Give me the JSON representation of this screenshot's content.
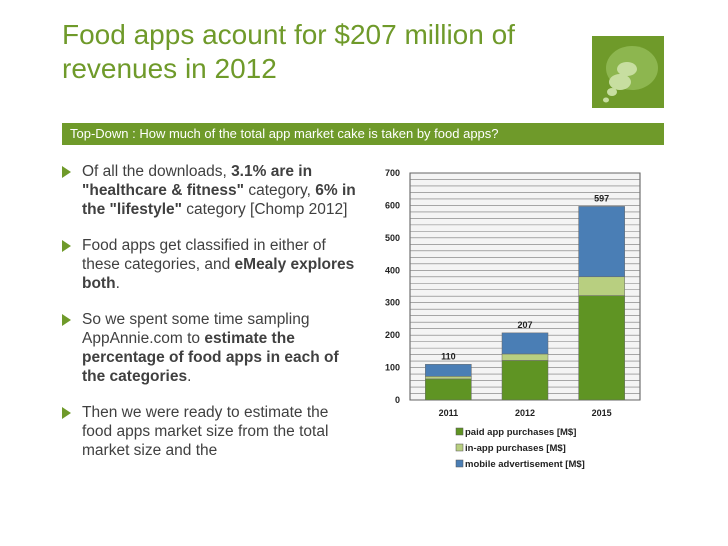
{
  "slide": {
    "title": "Food apps acount for $207 million of revenues in 2012",
    "subtitle": "Top-Down : How much of the total app market cake is taken by food apps?"
  },
  "bullets": [
    {
      "segments": [
        {
          "text": "Of all the downloads, ",
          "bold": false
        },
        {
          "text": "3.1% are in \"healthcare & fitness\"",
          "bold": true
        },
        {
          "text": " category, ",
          "bold": false
        },
        {
          "text": "6% in the \"lifestyle\"",
          "bold": true
        },
        {
          "text": " category [Chomp 2012]",
          "bold": false
        }
      ]
    },
    {
      "segments": [
        {
          "text": "Food apps get classified in either of these categories, and ",
          "bold": false
        },
        {
          "text": "eMealy explores both",
          "bold": true
        },
        {
          "text": ".",
          "bold": false
        }
      ]
    },
    {
      "segments": [
        {
          "text": "So we spent some time sampling AppAnnie.com to ",
          "bold": false
        },
        {
          "text": "estimate the percentage of food apps in each of the categories",
          "bold": true
        },
        {
          "text": ".",
          "bold": false
        }
      ]
    },
    {
      "segments": [
        {
          "text": "Then we were ready to estimate the food apps market size from the total market size and the",
          "bold": false
        }
      ]
    }
  ],
  "colors": {
    "accent": "#6f9a2a",
    "paid": "#5f9423",
    "inapp": "#b8cf80",
    "mobile_ad": "#4a7eb5"
  },
  "chart_data": {
    "type": "bar",
    "stacked": true,
    "categories": [
      "2011",
      "2012",
      "2015"
    ],
    "series": [
      {
        "name": "paid app purchases [M$]",
        "values": [
          65,
          122,
          322
        ]
      },
      {
        "name": "in-app purchases [M$]",
        "values": [
          8,
          20,
          58
        ]
      },
      {
        "name": "mobile advertisement [M$]",
        "values": [
          37,
          65,
          217
        ]
      }
    ],
    "totals": [
      "110",
      "207",
      "597"
    ],
    "ylim": [
      0,
      700
    ],
    "yticks": [
      "0",
      "100",
      "200",
      "300",
      "400",
      "500",
      "600",
      "700"
    ],
    "grid": true,
    "legend_position": "bottom"
  }
}
